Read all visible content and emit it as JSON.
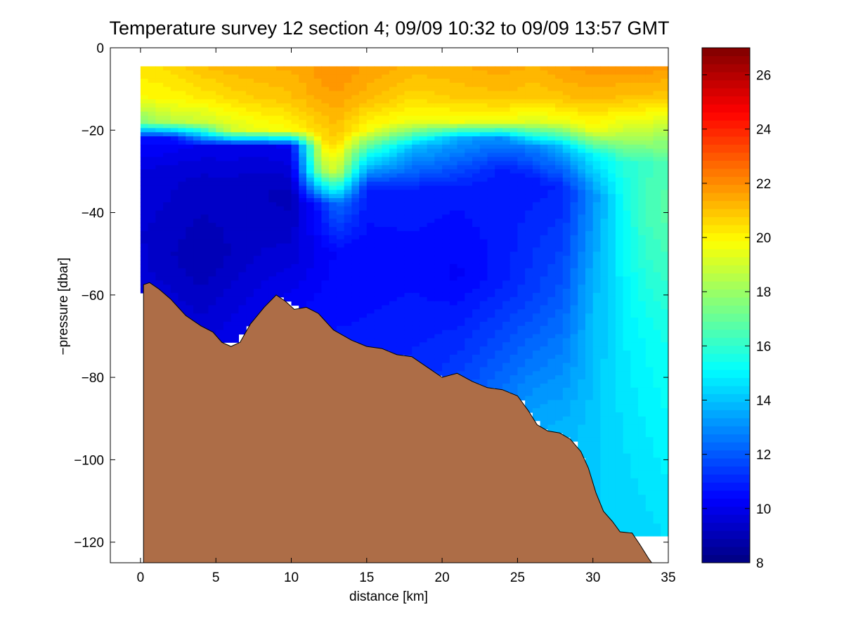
{
  "chart_data": {
    "type": "heatmap",
    "title": "Temperature survey 12 section 4; 09/09 10:32 to 09/09 13:57 GMT",
    "xlabel": "distance [km]",
    "ylabel": "−pressure [dbar]",
    "xlim": [
      -2,
      35
    ],
    "ylim": [
      -125,
      0
    ],
    "xticks": [
      0,
      5,
      10,
      15,
      20,
      25,
      30,
      35
    ],
    "yticks": [
      0,
      -20,
      -40,
      -60,
      -80,
      -100,
      -120
    ],
    "grid": false,
    "colorbar": {
      "colormap": "jet",
      "range": [
        8,
        27
      ],
      "ticks": [
        8,
        10,
        12,
        14,
        16,
        18,
        20,
        22,
        24,
        26
      ]
    },
    "data_x_range": [
      0,
      35
    ],
    "data_top_pressure": -4.5,
    "temperature_profiles": [
      {
        "x": 0,
        "depth": [
          -5,
          -12,
          -18,
          -22,
          -30,
          -45,
          -58
        ],
        "temp": [
          20.4,
          19.8,
          17.5,
          10.5,
          9.8,
          9.5,
          9.6
        ]
      },
      {
        "x": 2,
        "depth": [
          -5,
          -12,
          -18,
          -22,
          -30,
          -50,
          -67
        ],
        "temp": [
          20.5,
          20.0,
          18.5,
          10.5,
          9.6,
          9.2,
          9.8
        ]
      },
      {
        "x": 4,
        "depth": [
          -5,
          -12,
          -18,
          -24,
          -32,
          -52,
          -68
        ],
        "temp": [
          21.0,
          20.2,
          18.8,
          10.0,
          9.4,
          8.9,
          9.6
        ]
      },
      {
        "x": 6,
        "depth": [
          -5,
          -12,
          -20,
          -24,
          -34,
          -50,
          -72
        ],
        "temp": [
          21.2,
          20.6,
          19.0,
          10.0,
          9.3,
          9.2,
          10.0
        ]
      },
      {
        "x": 8,
        "depth": [
          -5,
          -12,
          -20,
          -24,
          -34,
          -50,
          -68
        ],
        "temp": [
          21.3,
          20.8,
          19.5,
          10.0,
          9.2,
          9.5,
          10.2
        ]
      },
      {
        "x": 10,
        "depth": [
          -5,
          -12,
          -20,
          -24,
          -36,
          -50,
          -63
        ],
        "temp": [
          21.4,
          21.0,
          19.8,
          10.2,
          9.0,
          9.6,
          10.3
        ]
      },
      {
        "x": 12,
        "depth": [
          -5,
          -12,
          -22,
          -30,
          -38,
          -50,
          -68
        ],
        "temp": [
          21.8,
          21.5,
          20.5,
          18.0,
          11.0,
          10.2,
          10.6
        ]
      },
      {
        "x": 13,
        "depth": [
          -5,
          -12,
          -22,
          -30,
          -38,
          -50,
          -70
        ],
        "temp": [
          22.0,
          21.6,
          20.8,
          19.0,
          12.5,
          10.4,
          10.7
        ]
      },
      {
        "x": 15,
        "depth": [
          -5,
          -12,
          -20,
          -26,
          -34,
          -50,
          -73
        ],
        "temp": [
          21.6,
          21.2,
          19.8,
          15.5,
          11.0,
          10.4,
          10.8
        ]
      },
      {
        "x": 18,
        "depth": [
          -5,
          -12,
          -18,
          -24,
          -34,
          -50,
          -75
        ],
        "temp": [
          21.2,
          20.6,
          19.5,
          14.0,
          11.0,
          10.5,
          11.0
        ]
      },
      {
        "x": 21,
        "depth": [
          -5,
          -12,
          -18,
          -22,
          -34,
          -55,
          -79
        ],
        "temp": [
          21.3,
          20.8,
          19.6,
          13.5,
          10.8,
          10.3,
          11.5
        ]
      },
      {
        "x": 24,
        "depth": [
          -5,
          -12,
          -18,
          -22,
          -30,
          -55,
          -83
        ],
        "temp": [
          21.5,
          21.0,
          19.5,
          13.0,
          10.8,
          10.8,
          12.5
        ]
      },
      {
        "x": 26,
        "depth": [
          -5,
          -12,
          -18,
          -24,
          -32,
          -60,
          -90
        ],
        "temp": [
          21.3,
          20.8,
          19.2,
          12.8,
          10.8,
          11.5,
          13.5
        ]
      },
      {
        "x": 28,
        "depth": [
          -5,
          -12,
          -18,
          -24,
          -34,
          -60,
          -93
        ],
        "temp": [
          21.6,
          21.0,
          19.5,
          14.0,
          11.0,
          12.0,
          13.8
        ]
      },
      {
        "x": 30,
        "depth": [
          -5,
          -12,
          -20,
          -26,
          -36,
          -60,
          -108
        ],
        "temp": [
          21.8,
          21.2,
          19.6,
          15.0,
          13.0,
          13.8,
          14.2
        ]
      },
      {
        "x": 32,
        "depth": [
          -5,
          -12,
          -20,
          -28,
          -40,
          -70,
          -117
        ],
        "temp": [
          21.8,
          21.0,
          19.0,
          15.8,
          15.2,
          14.8,
          14.3
        ]
      },
      {
        "x": 33.5,
        "depth": [
          -5,
          -12,
          -20,
          -28,
          -40,
          -70,
          -118
        ],
        "temp": [
          21.8,
          21.0,
          18.8,
          16.2,
          16.4,
          15.2,
          14.4
        ]
      },
      {
        "x": 35,
        "depth": [
          -5,
          -12,
          -20,
          -28,
          -40,
          -70,
          -117
        ],
        "temp": [
          21.7,
          20.8,
          18.5,
          16.5,
          16.8,
          15.5,
          14.6
        ]
      }
    ],
    "data_bottom_edge": [
      [
        0,
        -58
      ],
      [
        1.5,
        -62
      ],
      [
        3,
        -67
      ],
      [
        4.5,
        -68
      ],
      [
        5,
        -71
      ],
      [
        6.5,
        -71
      ],
      [
        7,
        -67
      ],
      [
        8,
        -65
      ],
      [
        8.5,
        -63
      ],
      [
        9,
        -60
      ],
      [
        11,
        -63
      ],
      [
        12,
        -66
      ],
      [
        13,
        -71
      ],
      [
        14,
        -72
      ],
      [
        16,
        -73
      ],
      [
        18,
        -75
      ],
      [
        19,
        -77
      ],
      [
        20,
        -80
      ],
      [
        21,
        -79
      ],
      [
        22,
        -81
      ],
      [
        24,
        -83
      ],
      [
        25,
        -84
      ],
      [
        26,
        -89
      ],
      [
        27,
        -93
      ],
      [
        28,
        -93
      ],
      [
        29,
        -95
      ],
      [
        30,
        -109
      ],
      [
        30.5,
        -113
      ],
      [
        31,
        -116
      ],
      [
        33,
        -118
      ],
      [
        35,
        -118
      ]
    ],
    "seabed": {
      "name": "seabed",
      "color": "#ad6d47",
      "points": [
        [
          0.2,
          -125
        ],
        [
          0.2,
          -57.5
        ],
        [
          0.6,
          -57
        ],
        [
          1.2,
          -58.5
        ],
        [
          2,
          -61
        ],
        [
          3,
          -65
        ],
        [
          4,
          -67.5
        ],
        [
          4.8,
          -69
        ],
        [
          5.4,
          -71.5
        ],
        [
          6,
          -72.5
        ],
        [
          6.6,
          -71.5
        ],
        [
          7.3,
          -67
        ],
        [
          8.2,
          -63
        ],
        [
          9,
          -60
        ],
        [
          9.6,
          -61.5
        ],
        [
          10.2,
          -63.5
        ],
        [
          11,
          -63
        ],
        [
          11.8,
          -64.5
        ],
        [
          12.8,
          -68.5
        ],
        [
          14,
          -71
        ],
        [
          15,
          -72.5
        ],
        [
          16,
          -73
        ],
        [
          17,
          -74.5
        ],
        [
          18,
          -75
        ],
        [
          19,
          -77.5
        ],
        [
          20,
          -80
        ],
        [
          21,
          -79
        ],
        [
          22,
          -81
        ],
        [
          23,
          -82.5
        ],
        [
          24,
          -83
        ],
        [
          25,
          -84.5
        ],
        [
          25.7,
          -88
        ],
        [
          26.3,
          -91.5
        ],
        [
          27,
          -93
        ],
        [
          27.8,
          -93.5
        ],
        [
          28.5,
          -95
        ],
        [
          29.2,
          -98
        ],
        [
          29.7,
          -102
        ],
        [
          30.2,
          -108
        ],
        [
          30.7,
          -112.5
        ],
        [
          31.3,
          -115
        ],
        [
          31.8,
          -117.5
        ],
        [
          32.6,
          -117.8
        ],
        [
          33.1,
          -120.5
        ],
        [
          33.7,
          -124
        ],
        [
          33.9,
          -125
        ]
      ]
    }
  }
}
